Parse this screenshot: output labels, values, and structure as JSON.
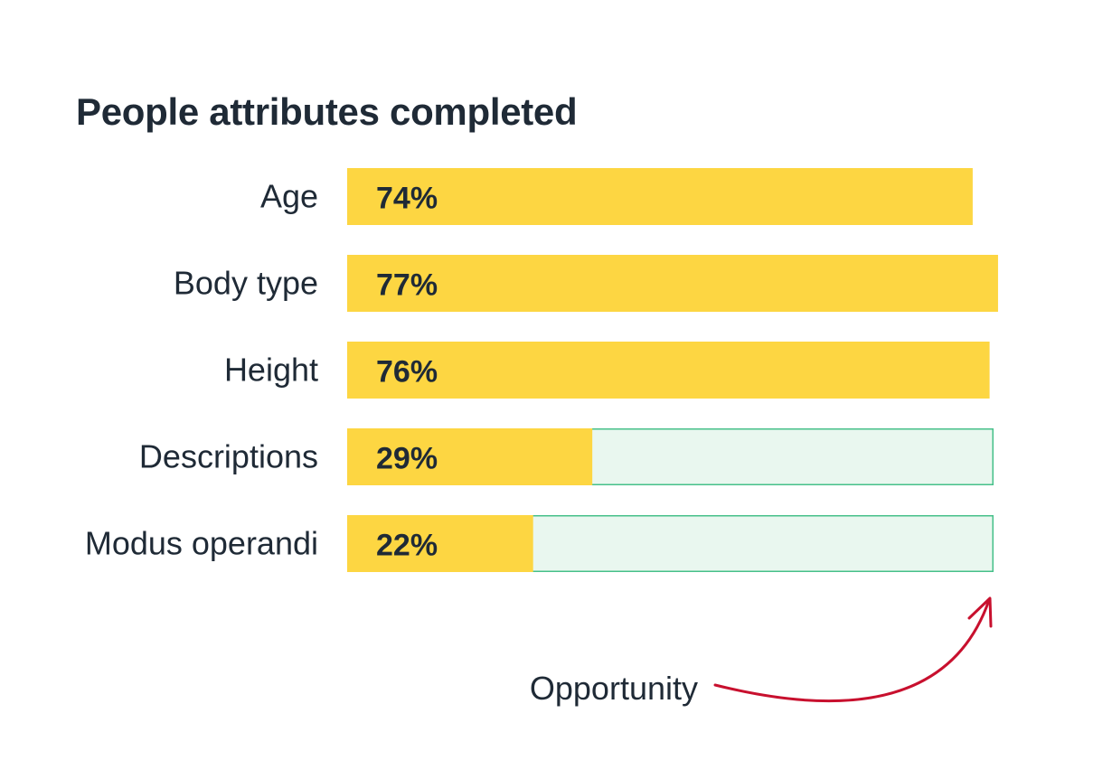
{
  "chart_data": {
    "type": "bar",
    "orientation": "horizontal",
    "title": "People attributes completed",
    "categories": [
      "Age",
      "Body type",
      "Height",
      "Descriptions",
      "Modus operandi"
    ],
    "values": [
      74,
      77,
      76,
      29,
      22
    ],
    "value_labels": [
      "74%",
      "77%",
      "76%",
      "29%",
      "22%"
    ],
    "unit": "%",
    "xlim": [
      0,
      100
    ],
    "opportunity_categories": [
      "Descriptions",
      "Modus operandi"
    ],
    "annotation": {
      "text": "Opportunity",
      "points_to": "Modus operandi"
    },
    "grid": false,
    "legend": "none"
  },
  "colors": {
    "bar": "#fdd642",
    "opportunity_fill": "#e9f7ef",
    "opportunity_border": "#46c08a",
    "annotation_arrow": "#c8102e",
    "text": "#1f2a36"
  }
}
